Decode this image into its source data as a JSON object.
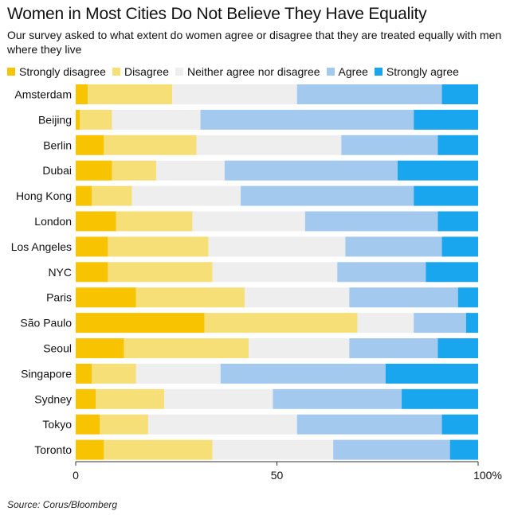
{
  "chart_data": {
    "type": "bar",
    "orientation": "horizontal-stacked-percent",
    "title": "Women in Most Cities Do Not Believe They Have Equality",
    "subtitle": "Our survey asked to what extent do women agree or disagree that they are treated equally with men where they live",
    "source": "Source: Corus/Bloomberg",
    "xlim": [
      0,
      100
    ],
    "xticks": [
      "0",
      "50",
      "100%"
    ],
    "xtick_values": [
      0,
      50,
      100
    ],
    "legend_position": "top",
    "categories": [
      "Amsterdam",
      "Beijing",
      "Berlin",
      "Dubai",
      "Hong Kong",
      "London",
      "Los Angeles",
      "NYC",
      "Paris",
      "São Paulo",
      "Seoul",
      "Singapore",
      "Sydney",
      "Tokyo",
      "Toronto"
    ],
    "series": [
      {
        "name": "Strongly disagree",
        "color": "#F8C300",
        "values": [
          3,
          1,
          7,
          9,
          4,
          10,
          8,
          8,
          15,
          32,
          12,
          4,
          5,
          6,
          7
        ]
      },
      {
        "name": "Disagree",
        "color": "#F7DF77",
        "values": [
          21,
          8,
          23,
          11,
          10,
          19,
          25,
          26,
          27,
          38,
          31,
          11,
          17,
          12,
          27
        ]
      },
      {
        "name": "Neither agree nor disagree",
        "color": "#EEEEEE",
        "values": [
          31,
          22,
          36,
          17,
          27,
          28,
          34,
          31,
          26,
          14,
          25,
          21,
          27,
          37,
          30
        ]
      },
      {
        "name": "Agree",
        "color": "#A3C9EE",
        "values": [
          36,
          53,
          24,
          43,
          43,
          33,
          24,
          22,
          27,
          13,
          22,
          41,
          32,
          36,
          29
        ]
      },
      {
        "name": "Strongly agree",
        "color": "#1AA6EE",
        "values": [
          9,
          16,
          10,
          20,
          16,
          10,
          9,
          13,
          5,
          3,
          10,
          23,
          19,
          9,
          7
        ]
      }
    ]
  }
}
